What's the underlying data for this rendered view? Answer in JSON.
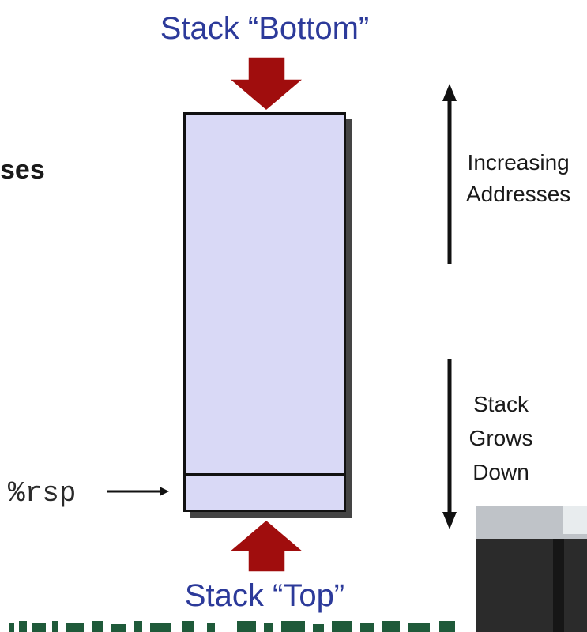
{
  "titles": {
    "bottom": "Stack “Bottom”",
    "top": "Stack “Top”"
  },
  "partial_heading": "ses",
  "register_label": "%rsp",
  "axis_labels": {
    "increasing": [
      "Increasing",
      "Addresses"
    ],
    "grows": [
      "Stack",
      "Grows",
      "Down"
    ]
  },
  "colors": {
    "title_blue": "#2c3a9a",
    "stack_fill": "#d9d9f6",
    "arrow_red": "#a00d0d"
  }
}
